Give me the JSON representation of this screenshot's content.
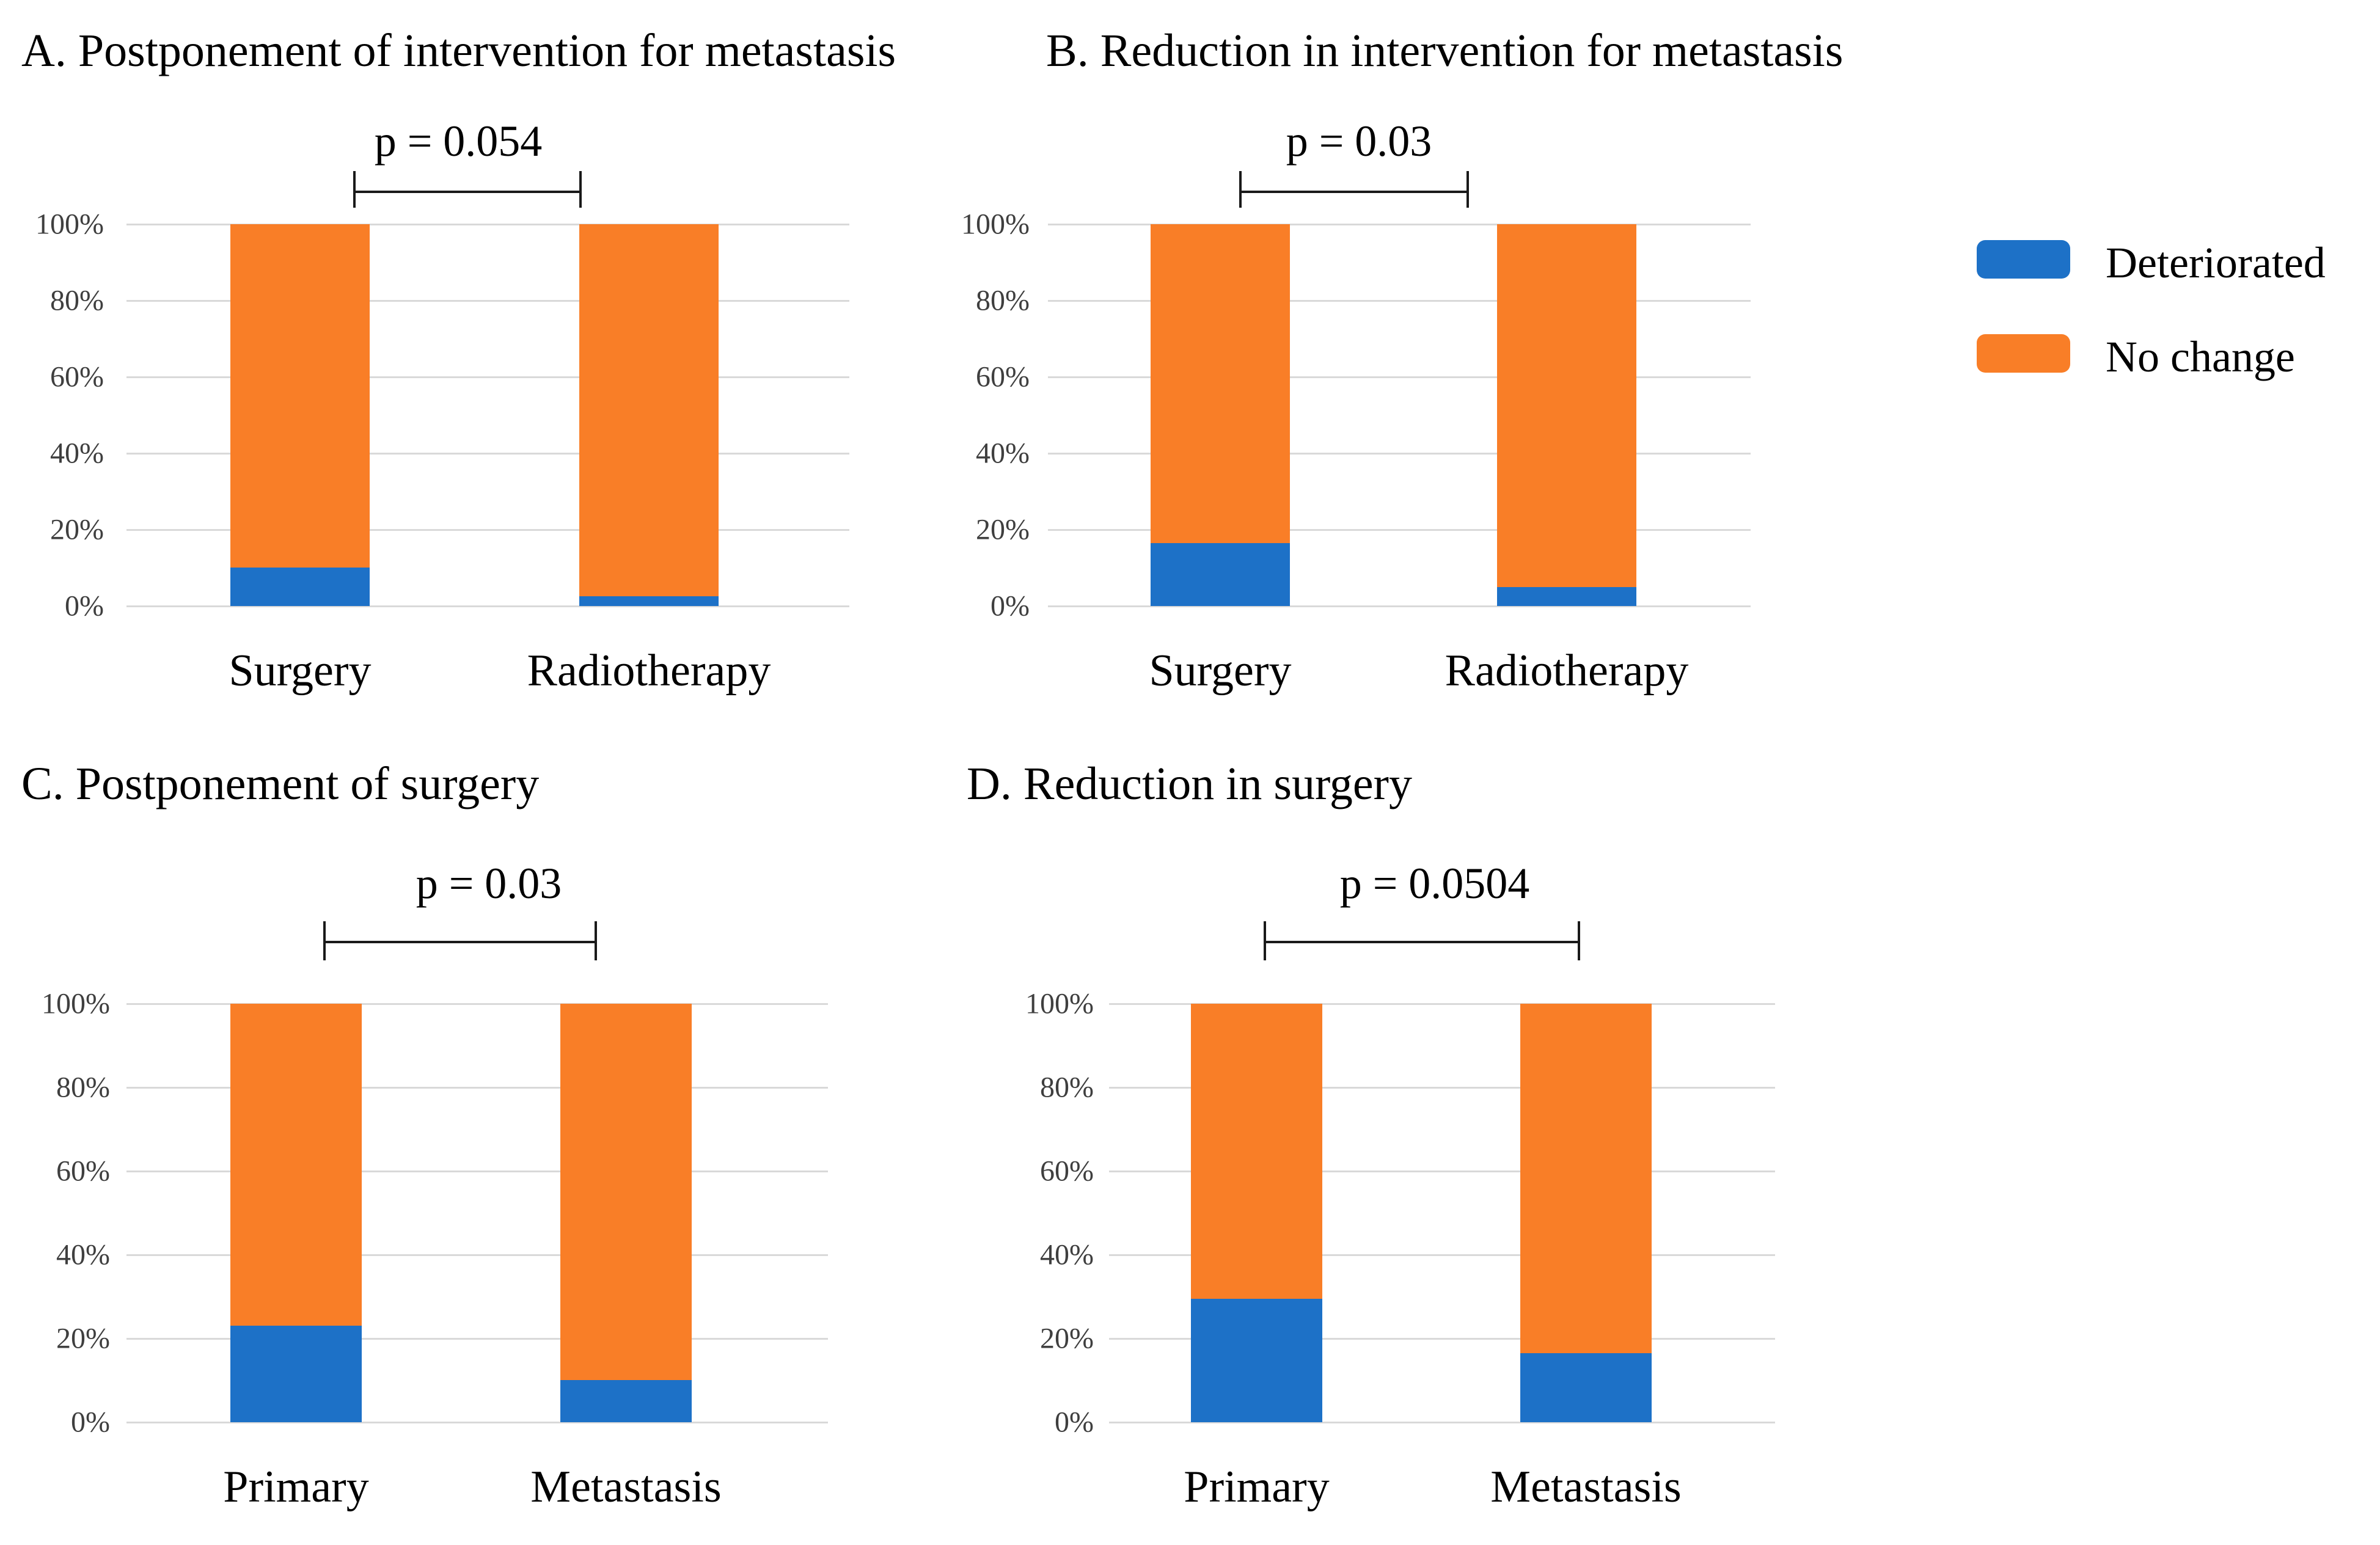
{
  "figure": {
    "background": "#ffffff",
    "kind": "four-panel stacked bar figure"
  },
  "colors": {
    "deteriorated": "#1d71c7",
    "no_change": "#f97e27",
    "gridline": "#d9d9d9",
    "axis_text": "#3f3f3f",
    "annotation": "#000000"
  },
  "y_axis_ticks": [
    "0%",
    "20%",
    "40%",
    "60%",
    "80%",
    "100%"
  ],
  "legend": {
    "items": [
      {
        "label": "Deteriorated",
        "series": "deteriorated"
      },
      {
        "label": "No change",
        "series": "no_change"
      }
    ]
  },
  "chart_data": [
    {
      "id": "A",
      "type": "bar",
      "stacked": true,
      "title": "A. Postponement of intervention for metastasis",
      "p_label": "p = 0.054",
      "categories": [
        "Surgery",
        "Radiotherapy"
      ],
      "series": [
        {
          "name": "Deteriorated",
          "values": [
            10,
            2.5
          ]
        },
        {
          "name": "No change",
          "values": [
            90,
            97.5
          ]
        }
      ],
      "ylim": [
        0,
        100
      ],
      "grid": true,
      "legend_position": "right"
    },
    {
      "id": "B",
      "type": "bar",
      "stacked": true,
      "title": "B. Reduction in intervention for metastasis",
      "p_label": "p = 0.03",
      "categories": [
        "Surgery",
        "Radiotherapy"
      ],
      "series": [
        {
          "name": "Deteriorated",
          "values": [
            16.5,
            5
          ]
        },
        {
          "name": "No change",
          "values": [
            83.5,
            95
          ]
        }
      ],
      "ylim": [
        0,
        100
      ],
      "grid": true,
      "legend_position": "right"
    },
    {
      "id": "C",
      "type": "bar",
      "stacked": true,
      "title": "C. Postponement of surgery",
      "p_label": "p = 0.03",
      "categories": [
        "Primary",
        "Metastasis"
      ],
      "series": [
        {
          "name": "Deteriorated",
          "values": [
            23,
            10
          ]
        },
        {
          "name": "No change",
          "values": [
            77,
            90
          ]
        }
      ],
      "ylim": [
        0,
        100
      ],
      "grid": true,
      "legend_position": "right"
    },
    {
      "id": "D",
      "type": "bar",
      "stacked": true,
      "title": "D. Reduction in surgery",
      "p_label": "p = 0.0504",
      "categories": [
        "Primary",
        "Metastasis"
      ],
      "series": [
        {
          "name": "Deteriorated",
          "values": [
            29.5,
            16.5
          ]
        },
        {
          "name": "No change",
          "values": [
            70.5,
            83.5
          ]
        }
      ],
      "ylim": [
        0,
        100
      ],
      "grid": true,
      "legend_position": "right"
    }
  ]
}
